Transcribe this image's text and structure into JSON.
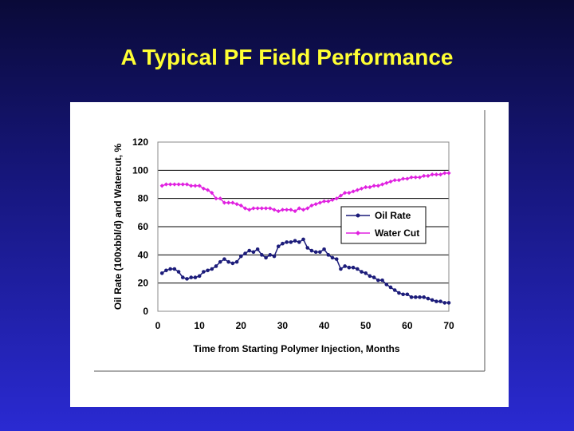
{
  "slide": {
    "title": "A Typical PF Field Performance"
  },
  "colors": {
    "oil": "#1c1c7a",
    "water": "#e020e0",
    "title": "#ffff33"
  },
  "chart_data": {
    "type": "line",
    "title": "",
    "xlabel": "Time from Starting Polymer Injection, Months",
    "ylabel": "Oil Rate (100xbbl/d) and Watercut, %",
    "xlim": [
      0,
      70
    ],
    "ylim": [
      0,
      120
    ],
    "xticks": [
      "0",
      "10",
      "20",
      "30",
      "40",
      "50",
      "60",
      "70"
    ],
    "yticks": [
      "0",
      "20",
      "40",
      "60",
      "80",
      "100",
      "120"
    ],
    "grid": "horizontal",
    "legend_position": "right",
    "series": [
      {
        "name": "Oil Rate",
        "marker": "circle",
        "x": [
          1,
          2,
          3,
          4,
          5,
          6,
          7,
          8,
          9,
          10,
          11,
          12,
          13,
          14,
          15,
          16,
          17,
          18,
          19,
          20,
          21,
          22,
          23,
          24,
          25,
          26,
          27,
          28,
          29,
          30,
          31,
          32,
          33,
          34,
          35,
          36,
          37,
          38,
          39,
          40,
          41,
          42,
          43,
          44,
          45,
          46,
          47,
          48,
          49,
          50,
          51,
          52,
          53,
          54,
          55,
          56,
          57,
          58,
          59,
          60,
          61,
          62,
          63,
          64,
          65,
          66,
          67,
          68,
          69,
          70
        ],
        "y": [
          27,
          29,
          30,
          30,
          28,
          24,
          23,
          24,
          24,
          25,
          28,
          29,
          30,
          32,
          35,
          37,
          35,
          34,
          35,
          39,
          41,
          43,
          42,
          44,
          40,
          38,
          40,
          39,
          46,
          48,
          49,
          49,
          50,
          49,
          51,
          45,
          43,
          42,
          42,
          44,
          40,
          38,
          37,
          30,
          32,
          31,
          31,
          30,
          28,
          27,
          25,
          24,
          22,
          22,
          19,
          17,
          15,
          13,
          12,
          12,
          10,
          10,
          10,
          10,
          9,
          8,
          7,
          7,
          6,
          6
        ]
      },
      {
        "name": "Water Cut",
        "marker": "diamond",
        "x": [
          1,
          2,
          3,
          4,
          5,
          6,
          7,
          8,
          9,
          10,
          11,
          12,
          13,
          14,
          15,
          16,
          17,
          18,
          19,
          20,
          21,
          22,
          23,
          24,
          25,
          26,
          27,
          28,
          29,
          30,
          31,
          32,
          33,
          34,
          35,
          36,
          37,
          38,
          39,
          40,
          41,
          42,
          43,
          44,
          45,
          46,
          47,
          48,
          49,
          50,
          51,
          52,
          53,
          54,
          55,
          56,
          57,
          58,
          59,
          60,
          61,
          62,
          63,
          64,
          65,
          66,
          67,
          68,
          69,
          70
        ],
        "y": [
          89,
          90,
          90,
          90,
          90,
          90,
          90,
          89,
          89,
          89,
          87,
          86,
          84,
          80,
          80,
          77,
          77,
          77,
          76,
          75,
          73,
          72,
          73,
          73,
          73,
          73,
          73,
          72,
          71,
          72,
          72,
          72,
          71,
          73,
          72,
          73,
          75,
          76,
          77,
          78,
          78,
          79,
          80,
          82,
          84,
          84,
          85,
          86,
          87,
          88,
          88,
          89,
          89,
          90,
          91,
          92,
          93,
          93,
          94,
          94,
          95,
          95,
          95,
          96,
          96,
          97,
          97,
          97,
          98,
          98
        ]
      }
    ]
  }
}
